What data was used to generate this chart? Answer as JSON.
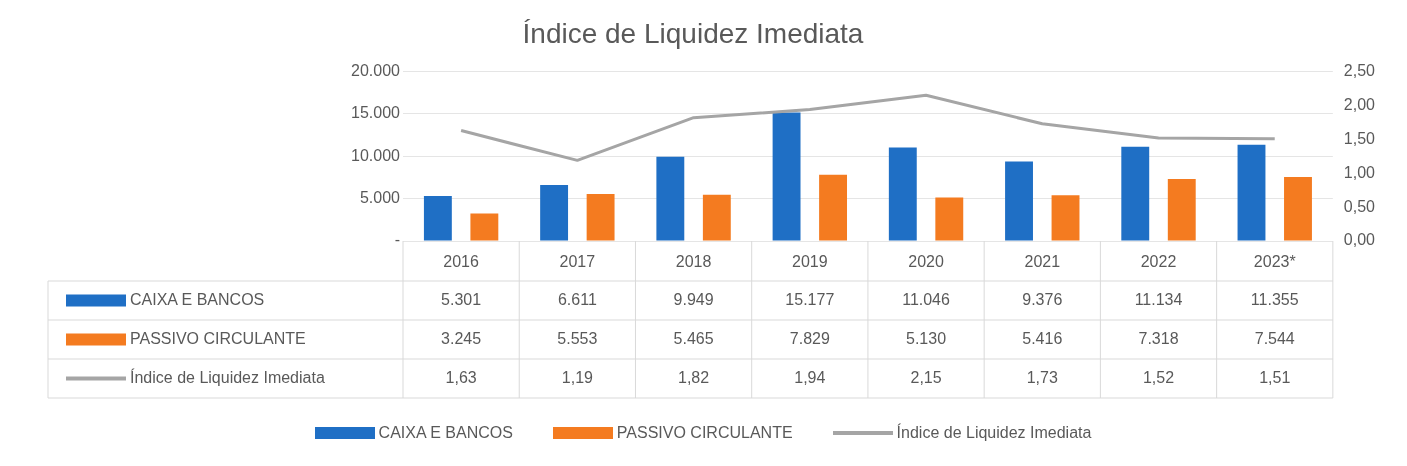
{
  "chart_data": {
    "type": "bar",
    "title": "Índice de Liquidez Imediata",
    "categories": [
      "2016",
      "2017",
      "2018",
      "2019",
      "2020",
      "2021",
      "2022",
      "2023*"
    ],
    "series": [
      {
        "name": "CAIXA E BANCOS",
        "color": "#1f6fc5",
        "values": [
          5301,
          6611,
          9949,
          15177,
          11046,
          9376,
          11134,
          11355
        ],
        "value_labels": [
          "5.301",
          "6.611",
          "9.949",
          "15.177",
          "11.046",
          "9.376",
          "11.134",
          "11.355"
        ]
      },
      {
        "name": "PASSIVO CIRCULANTE",
        "color": "#f47b20",
        "values": [
          3245,
          5553,
          5465,
          7829,
          5130,
          5416,
          7318,
          7544
        ],
        "value_labels": [
          "3.245",
          "5.553",
          "5.465",
          "7.829",
          "5.130",
          "5.416",
          "7.318",
          "7.544"
        ]
      },
      {
        "name": "Índice de Liquidez Imediata",
        "type": "line",
        "axis": "y2",
        "color": "#a5a5a5",
        "values": [
          1.63,
          1.19,
          1.82,
          1.94,
          2.15,
          1.73,
          1.52,
          1.51
        ],
        "value_labels": [
          "1,63",
          "1,19",
          "1,82",
          "1,94",
          "2,15",
          "1,73",
          "1,52",
          "1,51"
        ]
      }
    ],
    "ylim": [
      0,
      20000
    ],
    "yticks": [
      {
        "value": 0,
        "label": "-"
      },
      {
        "value": 5000,
        "label": "5.000"
      },
      {
        "value": 10000,
        "label": "10.000"
      },
      {
        "value": 15000,
        "label": "15.000"
      },
      {
        "value": 20000,
        "label": "20.000"
      }
    ],
    "y2lim": [
      0,
      2.5
    ],
    "y2ticks": [
      {
        "value": 0,
        "label": "0,00"
      },
      {
        "value": 0.5,
        "label": "0,50"
      },
      {
        "value": 1,
        "label": "1,00"
      },
      {
        "value": 1.5,
        "label": "1,50"
      },
      {
        "value": 2,
        "label": "2,00"
      },
      {
        "value": 2.5,
        "label": "2,50"
      }
    ],
    "grid": "y",
    "legend": "bottom",
    "marker": "none",
    "line_style": "solid"
  }
}
